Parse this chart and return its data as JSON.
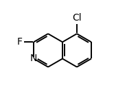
{
  "bg_color": "#ffffff",
  "bond_lw": 1.4,
  "dbl_sep": 0.022,
  "font_size": 10,
  "fig_w": 1.85,
  "fig_h": 1.34,
  "dpi": 100,
  "xlim": [
    -0.1,
    1.05
  ],
  "ylim": [
    -0.05,
    1.1
  ],
  "shrink": 0.13
}
